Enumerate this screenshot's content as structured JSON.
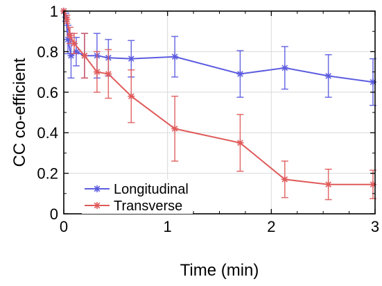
{
  "chart_data": {
    "type": "line",
    "xlabel": "Time (min)",
    "ylabel": "CC co-efficient",
    "xlim": [
      0,
      3
    ],
    "ylim": [
      0,
      1
    ],
    "xticks": [
      0,
      1,
      2,
      3
    ],
    "yticks": [
      0,
      0.2,
      0.4,
      0.6,
      0.8,
      1
    ],
    "xtick_labels": [
      "0",
      "1",
      "2",
      "3"
    ],
    "ytick_labels": [
      "0",
      "0.2",
      "0.4",
      "0.6",
      "0.8",
      "1"
    ],
    "grid": true,
    "legend_position": "lower-left",
    "series": [
      {
        "name": "Longitudinal",
        "color": "#5c5ce0",
        "marker": "asterisk",
        "points": [
          {
            "x": 0.0,
            "y": 1.0,
            "err": 0.0
          },
          {
            "x": 0.02,
            "y": 0.97,
            "err": 0.02
          },
          {
            "x": 0.04,
            "y": 0.86,
            "err": 0.07
          },
          {
            "x": 0.07,
            "y": 0.78,
            "err": 0.11
          },
          {
            "x": 0.12,
            "y": 0.8,
            "err": 0.07
          },
          {
            "x": 0.2,
            "y": 0.78,
            "err": 0.11
          },
          {
            "x": 0.32,
            "y": 0.78,
            "err": 0.11
          },
          {
            "x": 0.43,
            "y": 0.77,
            "err": 0.09
          },
          {
            "x": 0.65,
            "y": 0.765,
            "err": 0.09
          },
          {
            "x": 1.07,
            "y": 0.775,
            "err": 0.1
          },
          {
            "x": 1.7,
            "y": 0.69,
            "err": 0.115
          },
          {
            "x": 2.13,
            "y": 0.72,
            "err": 0.105
          },
          {
            "x": 2.55,
            "y": 0.68,
            "err": 0.105
          },
          {
            "x": 2.98,
            "y": 0.65,
            "err": 0.115
          }
        ]
      },
      {
        "name": "Transverse",
        "color": "#e05a5a",
        "marker": "asterisk",
        "points": [
          {
            "x": 0.0,
            "y": 1.0,
            "err": 0.0
          },
          {
            "x": 0.03,
            "y": 0.96,
            "err": 0.02
          },
          {
            "x": 0.06,
            "y": 0.88,
            "err": 0.04
          },
          {
            "x": 0.1,
            "y": 0.84,
            "err": 0.05
          },
          {
            "x": 0.2,
            "y": 0.78,
            "err": 0.11
          },
          {
            "x": 0.32,
            "y": 0.7,
            "err": 0.1
          },
          {
            "x": 0.43,
            "y": 0.69,
            "err": 0.12
          },
          {
            "x": 0.65,
            "y": 0.58,
            "err": 0.13
          },
          {
            "x": 1.07,
            "y": 0.42,
            "err": 0.16
          },
          {
            "x": 1.7,
            "y": 0.35,
            "err": 0.14
          },
          {
            "x": 2.13,
            "y": 0.17,
            "err": 0.09
          },
          {
            "x": 2.55,
            "y": 0.145,
            "err": 0.075
          },
          {
            "x": 2.98,
            "y": 0.145,
            "err": 0.07
          }
        ]
      }
    ]
  }
}
